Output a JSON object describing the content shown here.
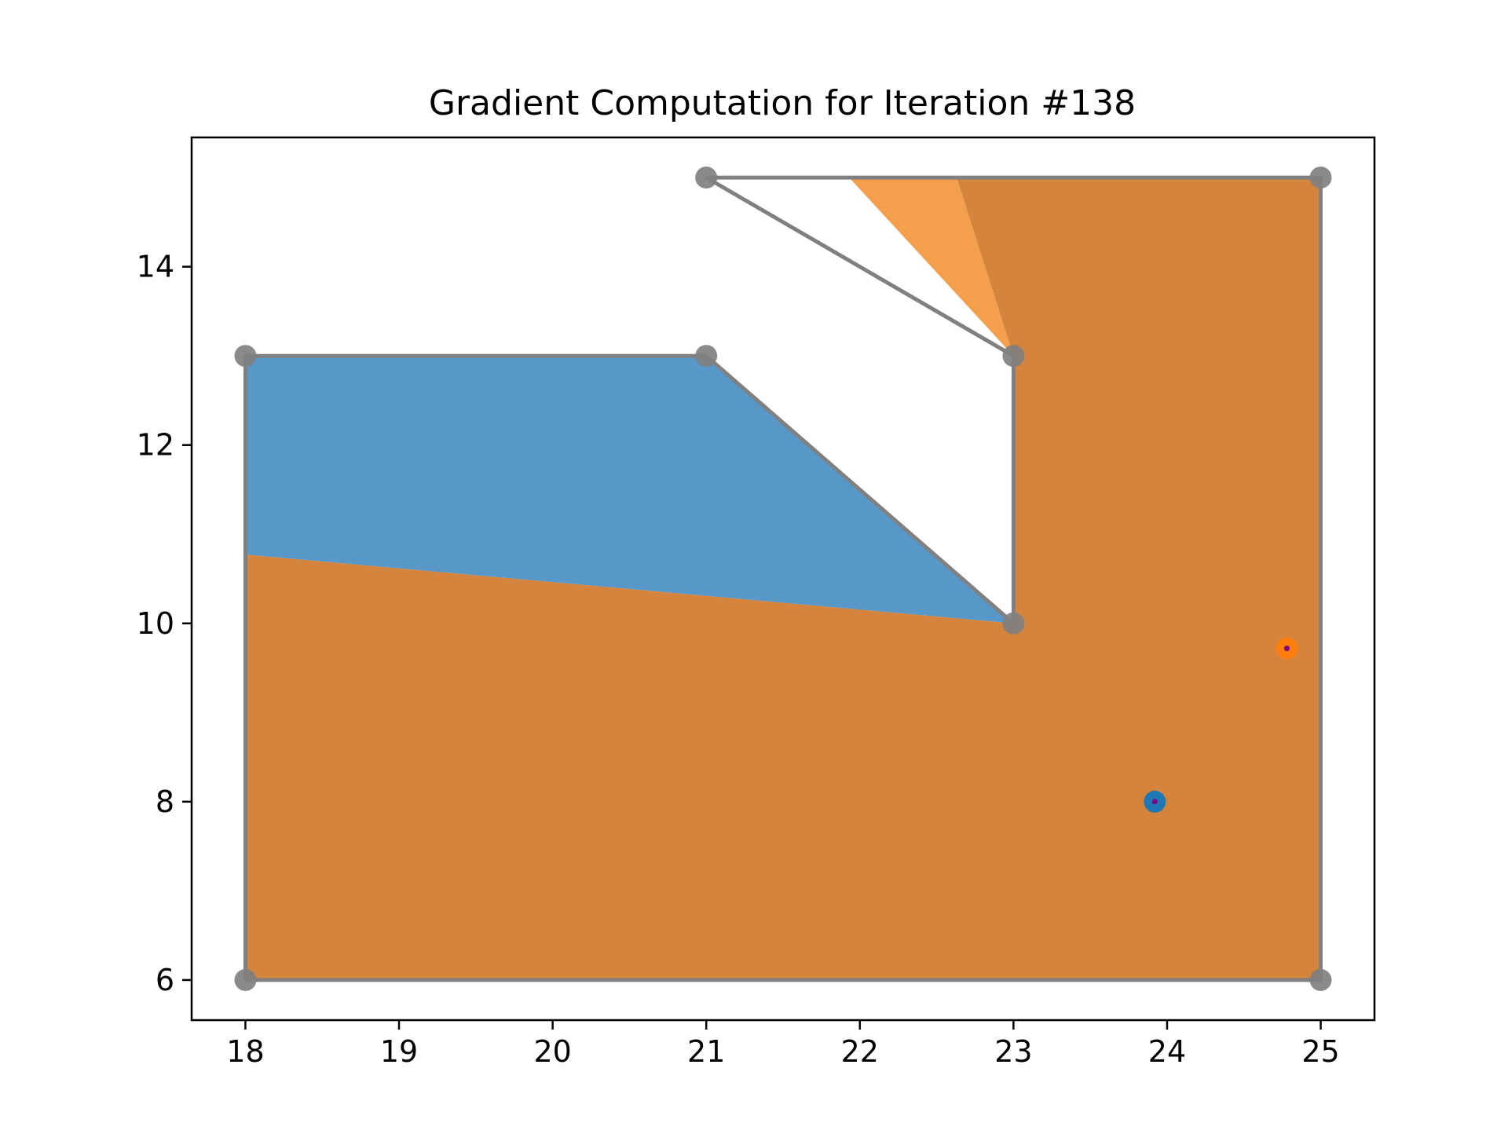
{
  "chart_data": {
    "type": "area",
    "title": "Gradient Computation for Iteration #138",
    "xlabel": "",
    "ylabel": "",
    "xlim": [
      17.65,
      25.35
    ],
    "ylim": [
      5.55,
      15.45
    ],
    "grid": false,
    "xticks": [
      18,
      19,
      20,
      21,
      22,
      23,
      24,
      25
    ],
    "yticks": [
      6,
      8,
      10,
      12,
      14
    ],
    "regions": [
      {
        "color": "#f28e2b",
        "opacity": 0.85,
        "points": [
          [
            21.93,
            15
          ],
          [
            22.63,
            15
          ],
          [
            23,
            13
          ]
        ]
      },
      {
        "color": "#4a8fc4",
        "opacity": 0.92,
        "points": [
          [
            18,
            13
          ],
          [
            21,
            13
          ],
          [
            23,
            10
          ],
          [
            18,
            10.77
          ]
        ]
      },
      {
        "color": "#d4843c",
        "opacity": 1,
        "points": [
          [
            18,
            6
          ],
          [
            25,
            6
          ],
          [
            25,
            15
          ],
          [
            22.63,
            15
          ],
          [
            23,
            13
          ],
          [
            23,
            10
          ],
          [
            18,
            10.77
          ]
        ]
      }
    ],
    "polygon": {
      "color": "#808080",
      "vertices": [
        [
          18,
          6
        ],
        [
          25,
          6
        ],
        [
          25,
          15
        ],
        [
          21,
          15
        ],
        [
          23,
          13
        ],
        [
          23,
          10
        ],
        [
          21,
          13
        ],
        [
          18,
          13
        ]
      ]
    },
    "centroids": [
      {
        "x": 23.92,
        "y": 8.0,
        "color": "#1f77b4",
        "inner": "#7f007f"
      },
      {
        "x": 24.78,
        "y": 9.72,
        "color": "#ff7f0e",
        "inner": "#7f007f"
      }
    ]
  }
}
